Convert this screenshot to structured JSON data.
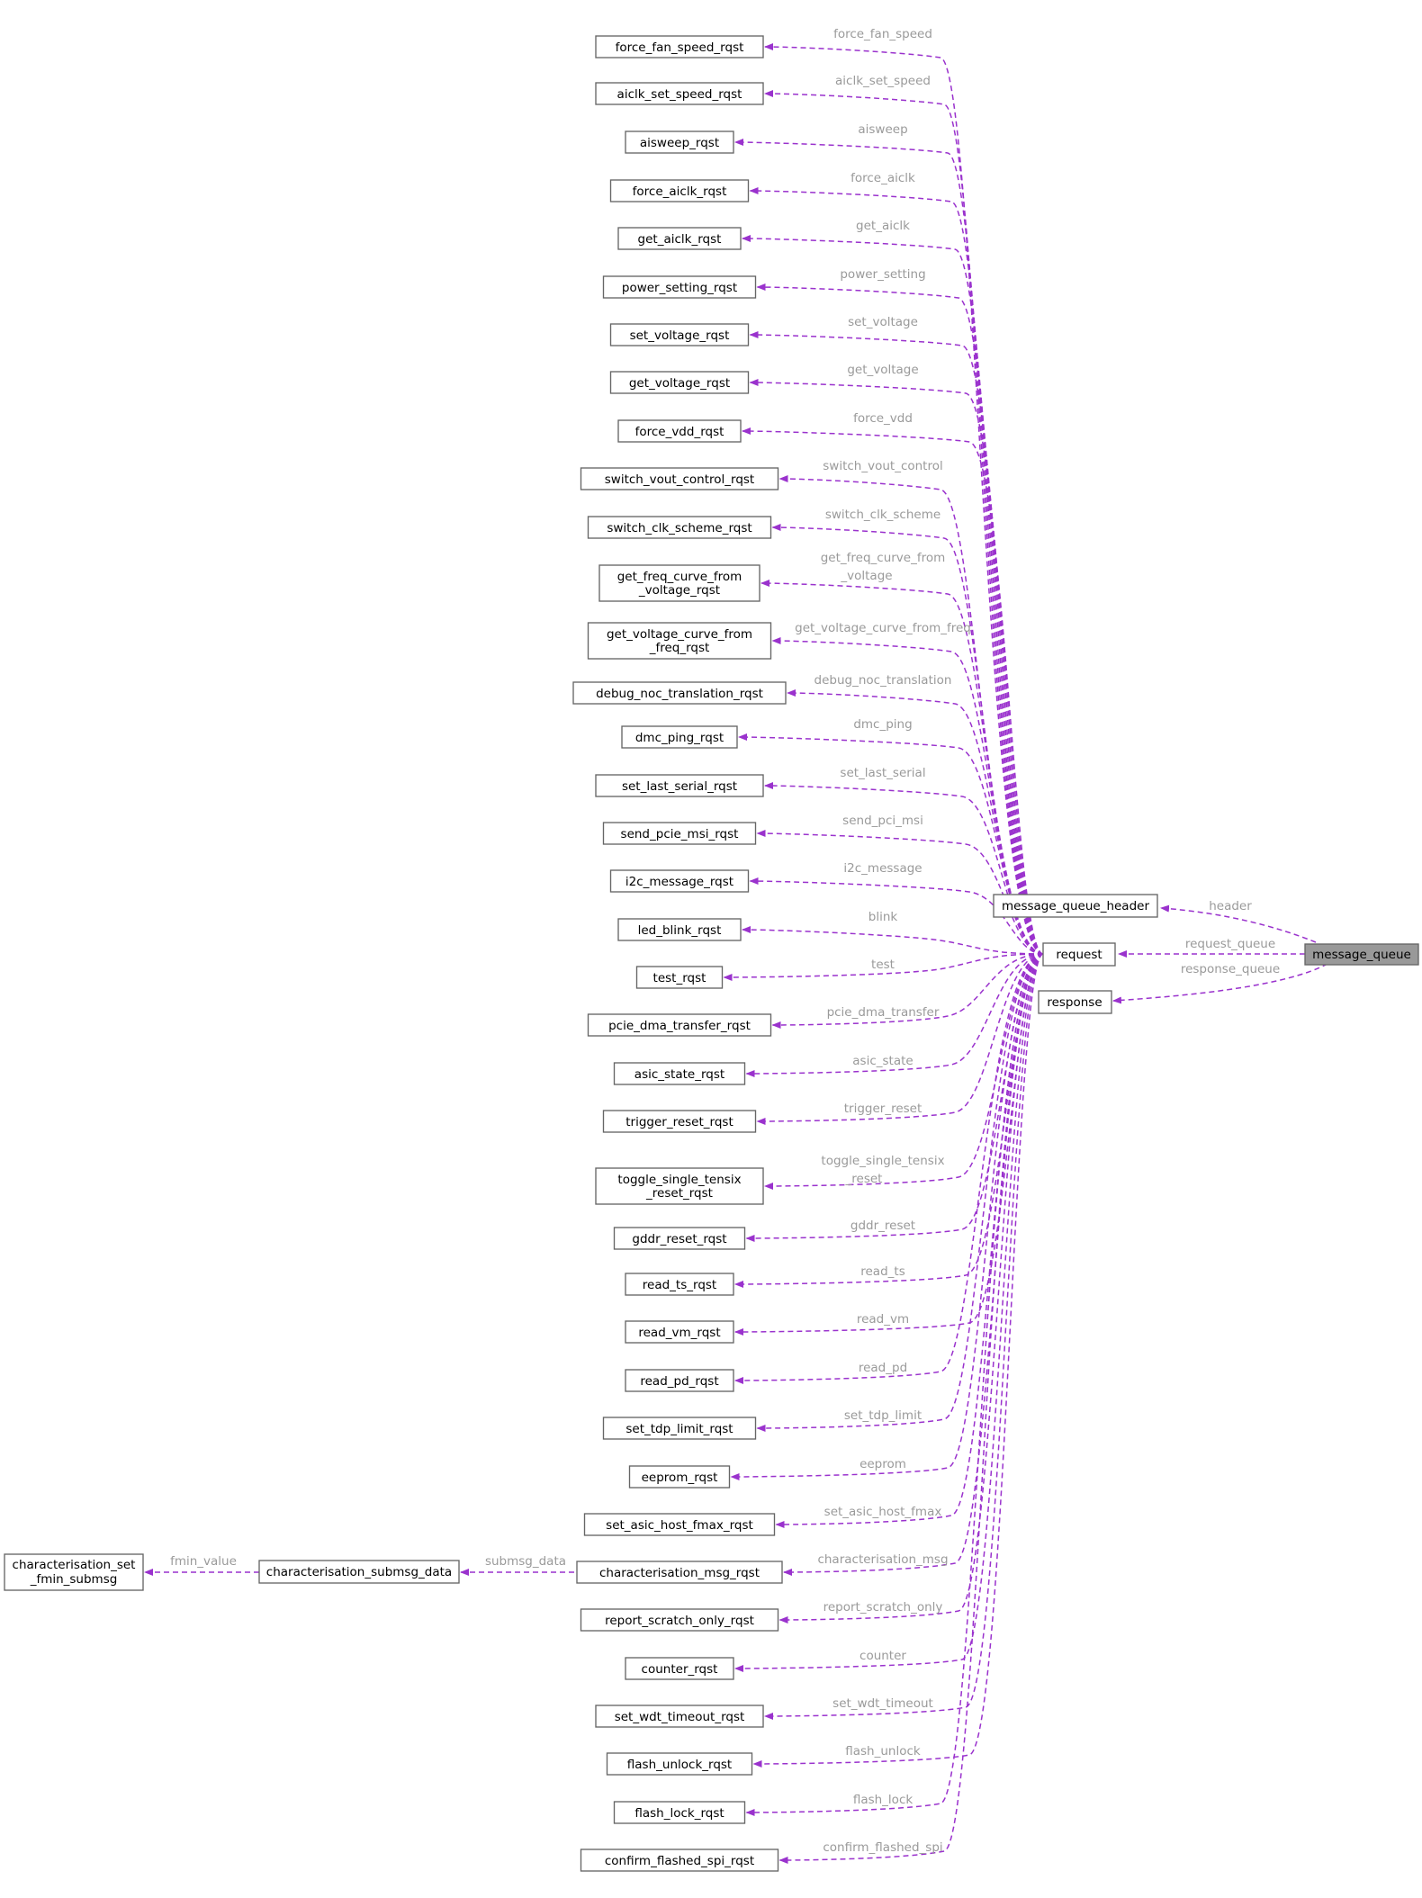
{
  "colors": {
    "edge": "#9a32cd",
    "edge_label": "#9a9a9a",
    "node_border": "#666666",
    "focus_fill": "#999999"
  },
  "nodes": {
    "message_queue": "message_queue",
    "message_queue_header": "message_queue_header",
    "request": "request",
    "response": "response",
    "characterisation_submsg_data": "characterisation_submsg_data",
    "characterisation_set_fmin_submsg": [
      "characterisation_set",
      "_fmin_submsg"
    ]
  },
  "edges": {
    "header": "header",
    "request_queue": "request_queue",
    "response_queue": "response_queue",
    "submsg_data": "submsg_data",
    "fmin_value": "fmin_value"
  },
  "requests": [
    {
      "name": [
        "force_fan_speed_rqst"
      ],
      "label": [
        "force_fan_speed"
      ]
    },
    {
      "name": [
        "aiclk_set_speed_rqst"
      ],
      "label": [
        "aiclk_set_speed"
      ]
    },
    {
      "name": [
        "aisweep_rqst"
      ],
      "label": [
        "aisweep"
      ]
    },
    {
      "name": [
        "force_aiclk_rqst"
      ],
      "label": [
        "force_aiclk"
      ]
    },
    {
      "name": [
        "get_aiclk_rqst"
      ],
      "label": [
        "get_aiclk"
      ]
    },
    {
      "name": [
        "power_setting_rqst"
      ],
      "label": [
        "power_setting"
      ]
    },
    {
      "name": [
        "set_voltage_rqst"
      ],
      "label": [
        "set_voltage"
      ]
    },
    {
      "name": [
        "get_voltage_rqst"
      ],
      "label": [
        "get_voltage"
      ]
    },
    {
      "name": [
        "force_vdd_rqst"
      ],
      "label": [
        "force_vdd"
      ]
    },
    {
      "name": [
        "switch_vout_control_rqst"
      ],
      "label": [
        "switch_vout_control"
      ]
    },
    {
      "name": [
        "switch_clk_scheme_rqst"
      ],
      "label": [
        "switch_clk_scheme"
      ]
    },
    {
      "name": [
        "get_freq_curve_from",
        "_voltage_rqst"
      ],
      "label": [
        "get_freq_curve_from",
        "_voltage"
      ]
    },
    {
      "name": [
        "get_voltage_curve_from",
        "_freq_rqst"
      ],
      "label": [
        "get_voltage_curve_from_freq"
      ]
    },
    {
      "name": [
        "debug_noc_translation_rqst"
      ],
      "label": [
        "debug_noc_translation"
      ]
    },
    {
      "name": [
        "dmc_ping_rqst"
      ],
      "label": [
        "dmc_ping"
      ]
    },
    {
      "name": [
        "set_last_serial_rqst"
      ],
      "label": [
        "set_last_serial"
      ]
    },
    {
      "name": [
        "send_pcie_msi_rqst"
      ],
      "label": [
        "send_pci_msi"
      ]
    },
    {
      "name": [
        "i2c_message_rqst"
      ],
      "label": [
        "i2c_message"
      ]
    },
    {
      "name": [
        "led_blink_rqst"
      ],
      "label": [
        "blink"
      ]
    },
    {
      "name": [
        "test_rqst"
      ],
      "label": [
        "test"
      ]
    },
    {
      "name": [
        "pcie_dma_transfer_rqst"
      ],
      "label": [
        "pcie_dma_transfer"
      ]
    },
    {
      "name": [
        "asic_state_rqst"
      ],
      "label": [
        "asic_state"
      ]
    },
    {
      "name": [
        "trigger_reset_rqst"
      ],
      "label": [
        "trigger_reset"
      ]
    },
    {
      "name": [
        "toggle_single_tensix",
        "_reset_rqst"
      ],
      "label": [
        "toggle_single_tensix",
        "_reset"
      ]
    },
    {
      "name": [
        "gddr_reset_rqst"
      ],
      "label": [
        "gddr_reset"
      ]
    },
    {
      "name": [
        "read_ts_rqst"
      ],
      "label": [
        "read_ts"
      ]
    },
    {
      "name": [
        "read_vm_rqst"
      ],
      "label": [
        "read_vm"
      ]
    },
    {
      "name": [
        "read_pd_rqst"
      ],
      "label": [
        "read_pd"
      ]
    },
    {
      "name": [
        "set_tdp_limit_rqst"
      ],
      "label": [
        "set_tdp_limit"
      ]
    },
    {
      "name": [
        "eeprom_rqst"
      ],
      "label": [
        "eeprom"
      ]
    },
    {
      "name": [
        "set_asic_host_fmax_rqst"
      ],
      "label": [
        "set_asic_host_fmax"
      ]
    },
    {
      "name": [
        "characterisation_msg_rqst"
      ],
      "label": [
        "characterisation_msg"
      ]
    },
    {
      "name": [
        "report_scratch_only_rqst"
      ],
      "label": [
        "report_scratch_only"
      ]
    },
    {
      "name": [
        "counter_rqst"
      ],
      "label": [
        "counter"
      ]
    },
    {
      "name": [
        "set_wdt_timeout_rqst"
      ],
      "label": [
        "set_wdt_timeout"
      ]
    },
    {
      "name": [
        "flash_unlock_rqst"
      ],
      "label": [
        "flash_unlock"
      ]
    },
    {
      "name": [
        "flash_lock_rqst"
      ],
      "label": [
        "flash_lock"
      ]
    },
    {
      "name": [
        "confirm_flashed_spi_rqst"
      ],
      "label": [
        "confirm_flashed_spi"
      ]
    }
  ]
}
